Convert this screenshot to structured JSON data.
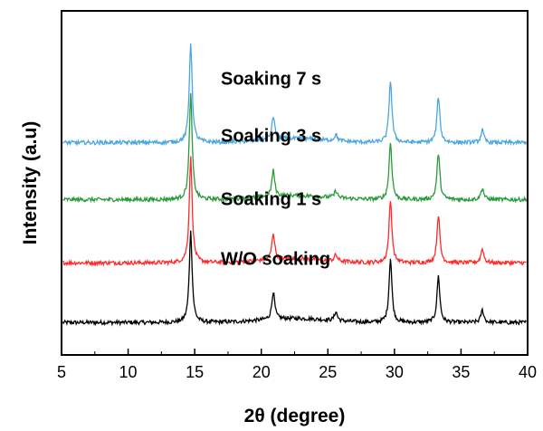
{
  "chart_data": {
    "type": "line",
    "xlabel": "2θ (degree)",
    "ylabel": "Intensity (a.u)",
    "xlim": [
      5,
      40
    ],
    "x_ticks": [
      5,
      10,
      15,
      20,
      25,
      30,
      35,
      40
    ],
    "y_scale": "arbitrary units, vertically offset traces",
    "grid": false,
    "legend": "labels placed directly above each trace",
    "peak_positions": [
      14.7,
      20.9,
      25.6,
      29.7,
      33.3,
      36.6
    ],
    "series": [
      {
        "name": "W/O soaking",
        "color": "#000000",
        "offset": 0,
        "baseline": 1.0,
        "peaks": [
          {
            "x": 14.7,
            "height": 10.2
          },
          {
            "x": 20.9,
            "height": 3.1
          },
          {
            "x": 25.6,
            "height": 1.0
          },
          {
            "x": 29.7,
            "height": 7.2
          },
          {
            "x": 33.3,
            "height": 5.2
          },
          {
            "x": 36.6,
            "height": 1.4
          }
        ]
      },
      {
        "name": "Soaking 1 s",
        "color": "#ff2a2a",
        "offset": 6.7,
        "baseline": 1.0,
        "peaks": [
          {
            "x": 14.7,
            "height": 11.8
          },
          {
            "x": 20.9,
            "height": 3.0
          },
          {
            "x": 25.6,
            "height": 0.7
          },
          {
            "x": 29.7,
            "height": 7.0
          },
          {
            "x": 33.3,
            "height": 5.4
          },
          {
            "x": 36.6,
            "height": 1.6
          }
        ]
      },
      {
        "name": "Soaking 3 s",
        "color": "#2a9a3a",
        "offset": 13.8,
        "baseline": 1.0,
        "peaks": [
          {
            "x": 14.7,
            "height": 11.8
          },
          {
            "x": 20.9,
            "height": 2.9
          },
          {
            "x": 25.6,
            "height": 0.8
          },
          {
            "x": 29.7,
            "height": 6.4
          },
          {
            "x": 33.3,
            "height": 5.2
          },
          {
            "x": 36.6,
            "height": 1.3
          }
        ]
      },
      {
        "name": "Soaking 7 s",
        "color": "#4aa6e0",
        "offset": 20.2,
        "baseline": 1.0,
        "peaks": [
          {
            "x": 14.7,
            "height": 11.2
          },
          {
            "x": 20.9,
            "height": 2.6
          },
          {
            "x": 25.6,
            "height": 0.7
          },
          {
            "x": 29.7,
            "height": 7.0
          },
          {
            "x": 33.3,
            "height": 5.2
          },
          {
            "x": 36.6,
            "height": 1.4
          }
        ]
      }
    ]
  }
}
